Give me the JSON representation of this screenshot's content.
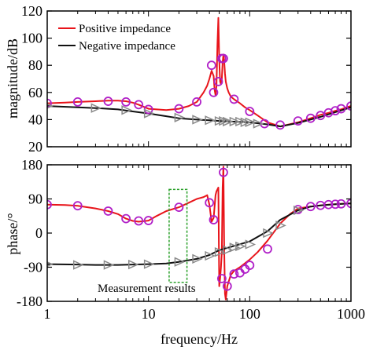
{
  "chart_data": [
    {
      "type": "line",
      "xscale": "log",
      "xlim": [
        1,
        1000
      ],
      "ylim": [
        20,
        120
      ],
      "ylabel": "magnitude/dB",
      "yticks": [
        20,
        40,
        60,
        80,
        100,
        120
      ],
      "grid": false,
      "legend_position": "top-left",
      "series": [
        {
          "name": "Positive impedance",
          "color": "#e8141a",
          "x": [
            1,
            1.5,
            2,
            3,
            4,
            5,
            6,
            7,
            8,
            10,
            15,
            20,
            25,
            30,
            35,
            38,
            40,
            42,
            44,
            45,
            46,
            47,
            48,
            49,
            50,
            51,
            52,
            53,
            54,
            55,
            56,
            57,
            58,
            60,
            62,
            65,
            70,
            80,
            90,
            100,
            120,
            150,
            200,
            300,
            400,
            500,
            600,
            700,
            800,
            900,
            1000
          ],
          "y": [
            52,
            52.5,
            53,
            53.5,
            54,
            54,
            53.5,
            52.5,
            51,
            48,
            47,
            48,
            50,
            53,
            60,
            65,
            70,
            76,
            72,
            62,
            58,
            65,
            95,
            115,
            84,
            68,
            66,
            70,
            82,
            88,
            83,
            74,
            68,
            63,
            60,
            57,
            55,
            52,
            49,
            47,
            43,
            38,
            35,
            38,
            41,
            43.5,
            45,
            46.5,
            47.5,
            49,
            50
          ]
        },
        {
          "name": "Negative impedance",
          "color": "#111111",
          "x": [
            1,
            2,
            3,
            5,
            7,
            10,
            15,
            20,
            30,
            40,
            50,
            70,
            100,
            150,
            200,
            300,
            500,
            700,
            1000
          ],
          "y": [
            50,
            49,
            48.5,
            47.5,
            46,
            44.5,
            42.5,
            41,
            40,
            39.5,
            39,
            38.5,
            38,
            36.5,
            35,
            37.5,
            42,
            45.5,
            49
          ]
        }
      ],
      "markers": [
        {
          "series": "Positive impedance",
          "shape": "circle",
          "color": "#b020c8",
          "x": [
            1,
            2,
            4,
            6,
            8,
            10,
            20,
            30,
            42,
            44,
            49,
            53,
            55,
            70,
            100,
            140,
            200,
            300,
            400,
            500,
            600,
            700,
            800,
            1000
          ],
          "y": [
            52,
            53,
            53.5,
            53,
            51,
            47.5,
            48,
            53,
            80,
            60,
            68,
            85,
            85,
            55,
            46,
            37,
            36,
            39,
            41,
            43,
            45,
            46.5,
            48,
            50
          ]
        },
        {
          "series": "Negative impedance",
          "shape": "triangle",
          "color": "#8a8a8a",
          "x": [
            1,
            3,
            6,
            10,
            20,
            30,
            40,
            50,
            55,
            60,
            70,
            80,
            90,
            100,
            120
          ],
          "y": [
            50,
            48.5,
            47,
            44.5,
            41.5,
            40,
            39.5,
            39,
            39,
            38.5,
            38.5,
            38.5,
            38,
            38,
            37
          ]
        }
      ]
    },
    {
      "type": "line",
      "xscale": "log",
      "xlim": [
        1,
        1000
      ],
      "ylim": [
        -180,
        180
      ],
      "xlabel": "frequency/Hz",
      "ylabel": "phase/°",
      "yticks": [
        -180,
        -90,
        0,
        90,
        180
      ],
      "ytick_labels": [
        "-180",
        "-90",
        "0",
        "90",
        "180"
      ],
      "xticks": [
        1,
        10,
        100,
        1000
      ],
      "xtick_labels": [
        "1",
        "10",
        "100",
        "1000"
      ],
      "grid": false,
      "series": [
        {
          "name": "Positive impedance",
          "color": "#e8141a",
          "x": [
            1,
            1.5,
            2,
            3,
            4,
            5,
            6,
            7,
            8,
            10,
            12,
            15,
            20,
            25,
            30,
            35,
            38,
            40,
            42,
            44,
            46,
            47,
            48,
            49,
            50,
            51,
            52,
            53,
            54,
            55,
            56,
            57,
            58,
            60,
            65,
            70,
            80,
            100,
            120,
            150,
            200,
            250,
            300,
            400,
            500,
            600,
            700,
            800,
            900,
            1000
          ],
          "y": [
            75,
            74,
            72,
            65,
            58,
            50,
            38,
            32,
            30,
            33,
            45,
            58,
            68,
            80,
            90,
            95,
            100,
            75,
            30,
            40,
            100,
            110,
            115,
            120,
            -140,
            -120,
            -90,
            -50,
            120,
            175,
            -40,
            -160,
            -175,
            -140,
            -110,
            -100,
            -90,
            -70,
            -50,
            -20,
            25,
            50,
            65,
            70,
            73,
            75,
            76,
            77,
            78,
            78
          ]
        },
        {
          "name": "Negative impedance",
          "color": "#111111",
          "x": [
            1,
            2,
            3,
            5,
            7,
            10,
            15,
            20,
            30,
            40,
            50,
            70,
            100,
            150,
            200,
            300,
            400,
            500,
            700,
            1000
          ],
          "y": [
            -82,
            -83,
            -84,
            -84,
            -83,
            -82,
            -80,
            -76,
            -68,
            -58,
            -45,
            -34,
            -22,
            5,
            35,
            60,
            70,
            73,
            76,
            78
          ]
        }
      ],
      "markers": [
        {
          "series": "Positive impedance",
          "shape": "circle",
          "color": "#b020c8",
          "x": [
            1,
            2,
            4,
            6,
            8,
            10,
            20,
            40,
            44,
            53,
            55,
            60,
            70,
            80,
            90,
            100,
            150,
            300,
            400,
            500,
            600,
            700,
            800,
            1000
          ],
          "y": [
            75,
            72,
            58,
            38,
            32,
            33,
            68,
            80,
            35,
            -120,
            160,
            -140,
            -108,
            -105,
            -95,
            -85,
            -42,
            62,
            70,
            73,
            75,
            76,
            77,
            78
          ]
        },
        {
          "series": "Negative impedance",
          "shape": "triangle",
          "color": "#8a8a8a",
          "x": [
            1,
            2,
            4,
            7,
            10,
            20,
            30,
            40,
            50,
            60,
            70,
            80,
            100,
            150,
            200,
            300
          ],
          "y": [
            -82,
            -84,
            -84,
            -83,
            -82,
            -76,
            -68,
            -60,
            -50,
            -45,
            -38,
            -35,
            -30,
            0,
            20,
            60
          ]
        }
      ],
      "annotation": {
        "text": "Measurement results",
        "x_range": [
          16,
          24
        ],
        "y_range": [
          -130,
          115
        ]
      }
    }
  ]
}
